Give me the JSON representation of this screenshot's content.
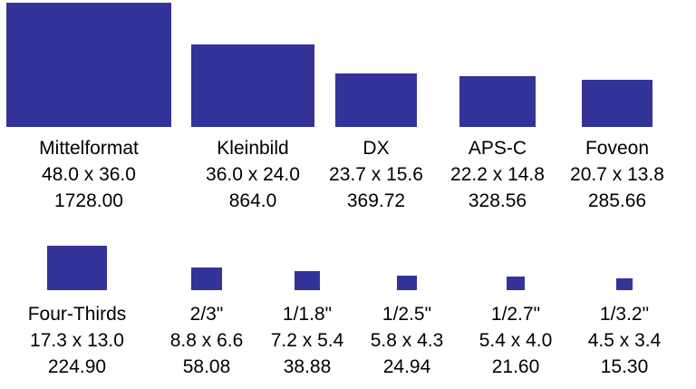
{
  "rows": [
    {
      "sensors": [
        {
          "name": "Mittelformat",
          "dims": "48.0 x 36.0",
          "area": "1728.00",
          "width_mm": 48.0,
          "height_mm": 36.0
        },
        {
          "name": "Kleinbild",
          "dims": "36.0 x 24.0",
          "area": "864.0",
          "width_mm": 36.0,
          "height_mm": 24.0
        },
        {
          "name": "DX",
          "dims": "23.7 x 15.6",
          "area": "369.72",
          "width_mm": 23.7,
          "height_mm": 15.6
        },
        {
          "name": "APS-C",
          "dims": "22.2 x 14.8",
          "area": "328.56",
          "width_mm": 22.2,
          "height_mm": 14.8
        },
        {
          "name": "Foveon",
          "dims": "20.7 x 13.8",
          "area": "285.66",
          "width_mm": 20.7,
          "height_mm": 13.8
        }
      ]
    },
    {
      "sensors": [
        {
          "name": "Four-Thirds",
          "dims": "17.3 x 13.0",
          "area": "224.90",
          "width_mm": 17.3,
          "height_mm": 13.0
        },
        {
          "name": "2/3\"",
          "dims": "8.8 x 6.6",
          "area": "58.08",
          "width_mm": 8.8,
          "height_mm": 6.6
        },
        {
          "name": "1/1.8\"",
          "dims": "7.2 x 5.4",
          "area": "38.88",
          "width_mm": 7.2,
          "height_mm": 5.4
        },
        {
          "name": "1/2.5\"",
          "dims": "5.8 x 4.3",
          "area": "24.94",
          "width_mm": 5.8,
          "height_mm": 4.3
        },
        {
          "name": "1/2.7\"",
          "dims": "5.4 x 4.0",
          "area": "21.60",
          "width_mm": 5.4,
          "height_mm": 4.0
        },
        {
          "name": "1/3.2\"",
          "dims": "4.5 x 3.4",
          "area": "15.30",
          "width_mm": 4.5,
          "height_mm": 3.4
        }
      ]
    }
  ],
  "colors": {
    "sensor_fill": "#343399",
    "text": "#000000"
  }
}
